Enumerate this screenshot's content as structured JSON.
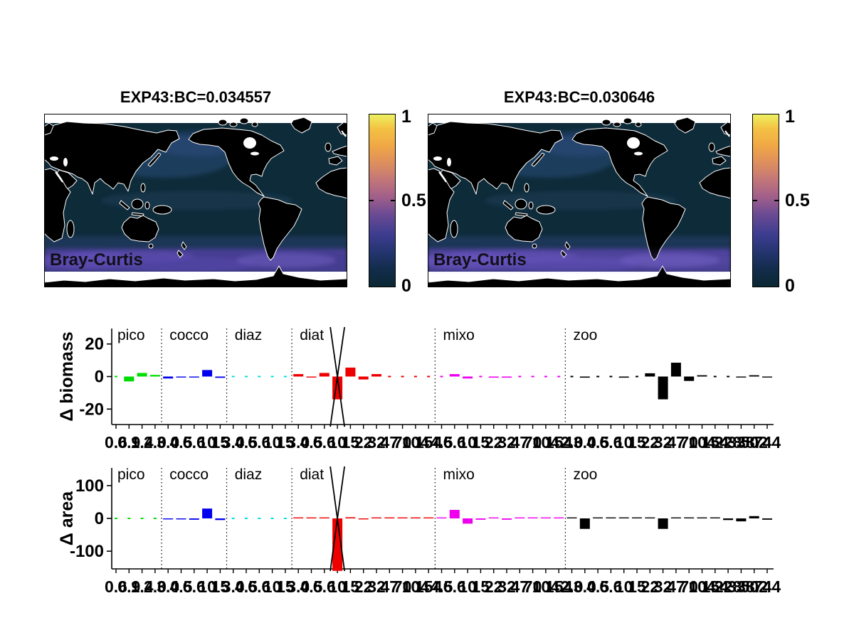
{
  "figure": {
    "background": "#ffffff"
  },
  "maps": [
    {
      "title": "EXP43:BC=0.034557",
      "overlay_label": "Bray-Curtis",
      "colorbar": {
        "min": 0,
        "max": 1,
        "ticks": [
          "1",
          "0.5",
          "0"
        ]
      }
    },
    {
      "title": "EXP43:BC=0.030646",
      "overlay_label": "Bray-Curtis",
      "colorbar": {
        "min": 0,
        "max": 1,
        "ticks": [
          "1",
          "0.5",
          "0"
        ]
      }
    }
  ],
  "colormap": [
    {
      "p": 0,
      "c": "#0b2834"
    },
    {
      "p": 10,
      "c": "#122c4a"
    },
    {
      "p": 20,
      "c": "#24356f"
    },
    {
      "p": 30,
      "c": "#3c3c8f"
    },
    {
      "p": 42,
      "c": "#6b4b93"
    },
    {
      "p": 52,
      "c": "#a05f8a"
    },
    {
      "p": 62,
      "c": "#c27679"
    },
    {
      "p": 72,
      "c": "#de8f5d"
    },
    {
      "p": 82,
      "c": "#f0a844"
    },
    {
      "p": 92,
      "c": "#f4c243"
    },
    {
      "p": 100,
      "c": "#edf161"
    }
  ],
  "map_colors": {
    "land": "#000000",
    "coast": "#ffffff",
    "ocean": "#0e2b3a",
    "north_pacific": "#2a4a78",
    "southern_band": "#4f41a0",
    "no_data": "#ffffff"
  },
  "chart_data": [
    {
      "type": "bar",
      "id": "biomass",
      "ylabel": "Δ biomass",
      "ylim": [
        -29.5,
        29.5
      ],
      "yticks": [
        "20",
        "0",
        "-20"
      ],
      "ytick_values": [
        20,
        0,
        -20
      ],
      "marker_global_index": 17,
      "grid": false,
      "groups": [
        {
          "name": "pico",
          "color": "#00dd00",
          "sizes": [
            "0.6",
            "0.9",
            "1.4",
            "2.0"
          ],
          "values": [
            -0.2,
            -3,
            2.2,
            1
          ]
        },
        {
          "name": "cocco",
          "color": "#0000ee",
          "sizes": [
            "3.0",
            "4.5",
            "6.6",
            "10",
            "15"
          ],
          "values": [
            -1.2,
            -0.6,
            -0.6,
            4,
            -0.8
          ]
        },
        {
          "name": "diaz",
          "color": "#00dddd",
          "sizes": [
            "3.0",
            "4.5",
            "6.6",
            "10",
            "15"
          ],
          "values": [
            0.1,
            0.1,
            0.1,
            0.1,
            0.1
          ]
        },
        {
          "name": "diat",
          "color": "#ee0000",
          "sizes": [
            "3.0",
            "4.5",
            "6.6",
            "10",
            "15",
            "22",
            "32",
            "47",
            "70",
            "104",
            "154"
          ],
          "values": [
            1.5,
            -0.6,
            2.2,
            -14,
            5.5,
            -1.8,
            1.5,
            0.15,
            0.15,
            0.15,
            0.15
          ]
        },
        {
          "name": "mixo",
          "color": "#ee00ee",
          "sizes": [
            "4.5",
            "6.6",
            "10",
            "15",
            "22",
            "32",
            "47",
            "70",
            "104",
            "154"
          ],
          "values": [
            0.15,
            1.5,
            -1.2,
            0.15,
            -0.7,
            -0.7,
            0.15,
            0.15,
            0.15,
            0.15
          ]
        },
        {
          "name": "zoo",
          "color": "#000000",
          "sizes": [
            "2.0",
            "3.0",
            "4.5",
            "6.6",
            "10",
            "15",
            "22",
            "32",
            "47",
            "70",
            "104",
            "154",
            "228",
            "338",
            "502",
            "744"
          ],
          "values": [
            0.1,
            -0.7,
            0.1,
            0.1,
            -0.7,
            0.1,
            2,
            -14,
            8.5,
            -2.7,
            0.8,
            0.1,
            0.1,
            -0.5,
            0.8,
            -0.5
          ]
        }
      ]
    },
    {
      "type": "bar",
      "id": "area",
      "ylabel": "Δ area",
      "ylim": [
        -154,
        154
      ],
      "yticks": [
        "100",
        "0",
        "-100"
      ],
      "ytick_values": [
        100,
        0,
        -100
      ],
      "marker_global_index": 17,
      "grid": false,
      "groups": [
        {
          "name": "pico",
          "color": "#00dd00",
          "sizes": [
            "0.6",
            "0.9",
            "1.4",
            "2.0"
          ],
          "values": [
            0.3,
            0.3,
            0.3,
            0.3
          ]
        },
        {
          "name": "cocco",
          "color": "#0000ee",
          "sizes": [
            "3.0",
            "4.5",
            "6.6",
            "10",
            "15"
          ],
          "values": [
            -3,
            -3,
            -4,
            30,
            -5
          ]
        },
        {
          "name": "diaz",
          "color": "#00dddd",
          "sizes": [
            "3.0",
            "4.5",
            "6.6",
            "10",
            "15"
          ],
          "values": [
            0.3,
            0.3,
            0.3,
            0.3,
            0.3
          ]
        },
        {
          "name": "diat",
          "color": "#ee0000",
          "sizes": [
            "3.0",
            "4.5",
            "6.6",
            "10",
            "15",
            "22",
            "32",
            "47",
            "70",
            "104",
            "154"
          ],
          "values": [
            0.5,
            1,
            2.5,
            -160,
            3.5,
            -1.5,
            1.5,
            0.5,
            0.5,
            0.5,
            0.5
          ]
        },
        {
          "name": "mixo",
          "color": "#ee00ee",
          "sizes": [
            "4.5",
            "6.6",
            "10",
            "15",
            "22",
            "32",
            "47",
            "70",
            "104",
            "154"
          ],
          "values": [
            0.5,
            26,
            -16,
            -4,
            0.5,
            -4,
            0.5,
            0.5,
            0.5,
            0.5
          ]
        },
        {
          "name": "zoo",
          "color": "#000000",
          "sizes": [
            "2.0",
            "3.0",
            "4.5",
            "6.6",
            "10",
            "15",
            "22",
            "32",
            "47",
            "70",
            "104",
            "154",
            "228",
            "338",
            "502",
            "744"
          ],
          "values": [
            0.5,
            -32,
            0.5,
            0.5,
            0.5,
            0.5,
            0.5,
            -32,
            0.5,
            0.5,
            0.5,
            0.5,
            -5,
            -9,
            7,
            -4
          ]
        }
      ]
    }
  ]
}
